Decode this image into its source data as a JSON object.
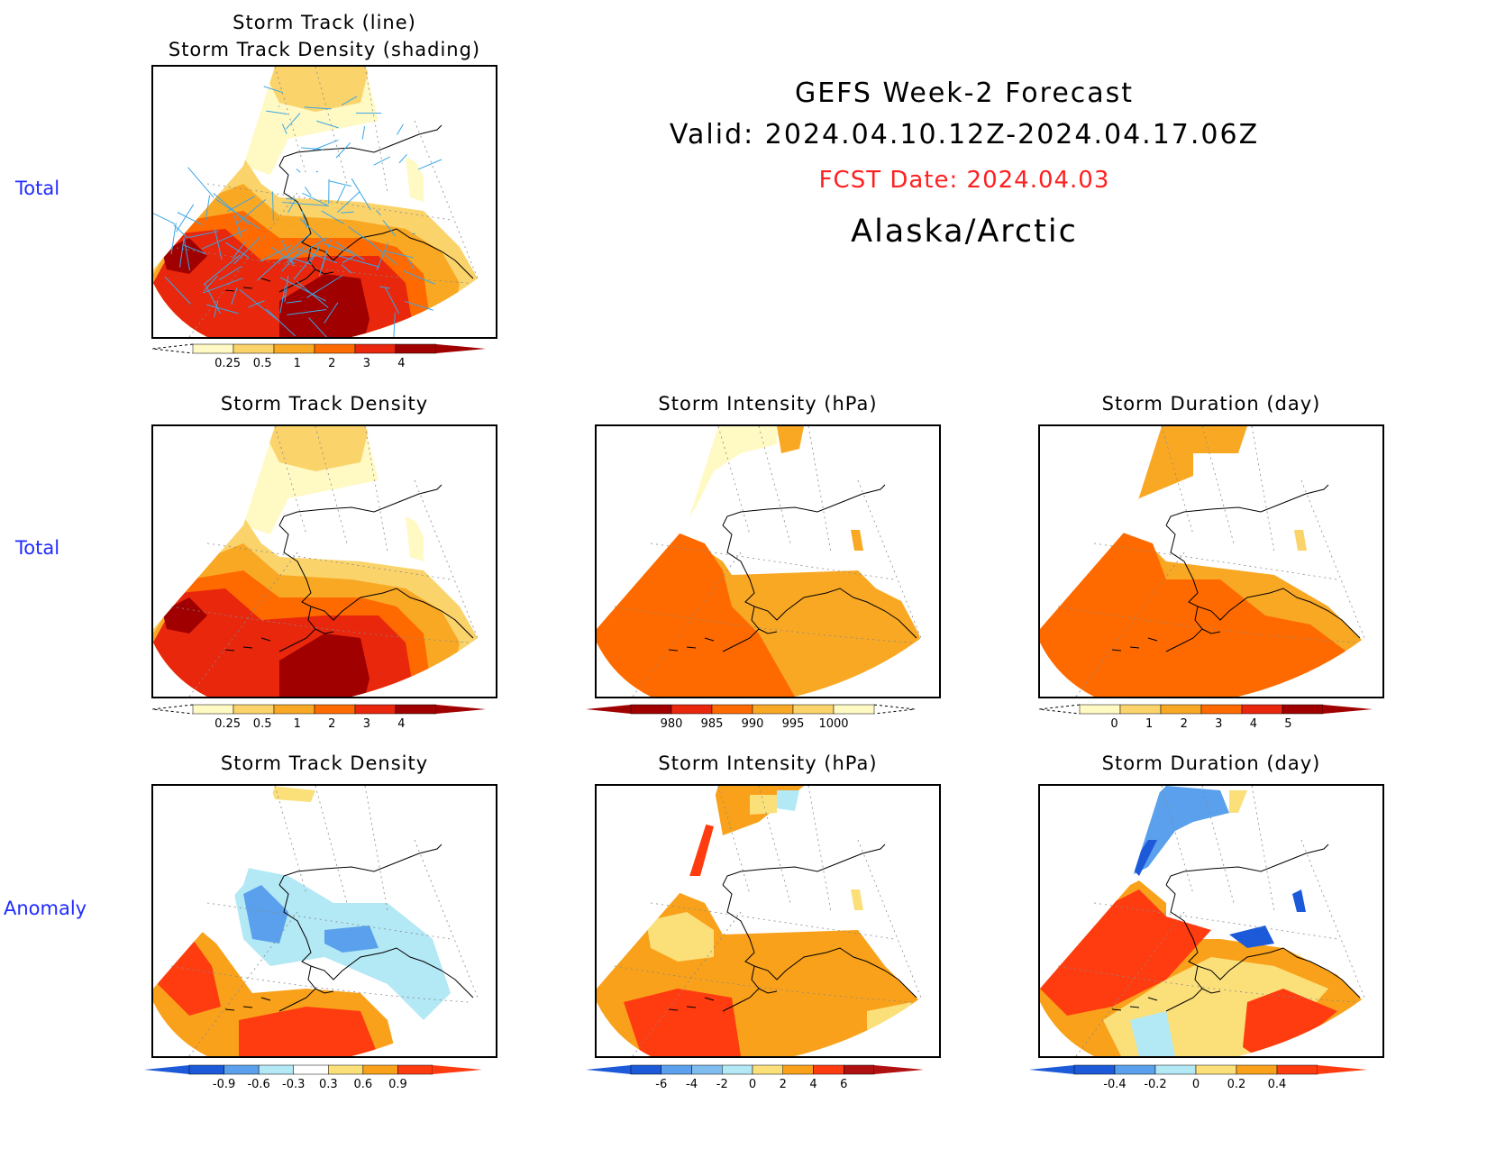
{
  "header": {
    "line1": "GEFS Week-2 Forecast",
    "line2": "Valid: 2024.04.10.12Z-2024.04.17.06Z",
    "fcst": "FCST Date: 2024.04.03",
    "region": "Alaska/Arctic",
    "fcst_color": "#ff2020"
  },
  "rows": {
    "row1": "Total",
    "row2": "Total",
    "row3": "Anomaly"
  },
  "panels": {
    "p1": {
      "title": "Storm Track (line)\nStorm Track Density (shading)",
      "colorbar": [
        "0.25",
        "0.5",
        "1",
        "2",
        "3",
        "4"
      ]
    },
    "p2": {
      "title": "Storm Track Density",
      "colorbar": [
        "0.25",
        "0.5",
        "1",
        "2",
        "3",
        "4"
      ]
    },
    "p3": {
      "title": "Storm Intensity (hPa)",
      "colorbar": [
        "980",
        "985",
        "990",
        "995",
        "1000"
      ]
    },
    "p4": {
      "title": "Storm Duration (day)",
      "colorbar": [
        "0",
        "1",
        "2",
        "3",
        "4",
        "5"
      ]
    },
    "p5": {
      "title": "Storm Track Density",
      "colorbar": [
        "-0.9",
        "-0.6",
        "-0.3",
        "0.3",
        "0.6",
        "0.9"
      ]
    },
    "p6": {
      "title": "Storm Intensity (hPa)",
      "colorbar": [
        "-6",
        "-4",
        "-2",
        "0",
        "2",
        "4",
        "6"
      ]
    },
    "p7": {
      "title": "Storm Duration (day)",
      "colorbar": [
        "-0.4",
        "-0.2",
        "0",
        "0.2",
        "0.4"
      ]
    }
  },
  "colors": {
    "seq": [
      "#fff9c4",
      "#fbd36b",
      "#f9a824",
      "#ff6a00",
      "#e8270d",
      "#a00000"
    ],
    "div_neg": [
      "#1c5ad9",
      "#5aa0ec",
      "#b3e8f5"
    ],
    "div_pos": [
      "#fbe07a",
      "#f9a11a",
      "#ff3b10"
    ],
    "track_line": "#3aa6e6"
  }
}
